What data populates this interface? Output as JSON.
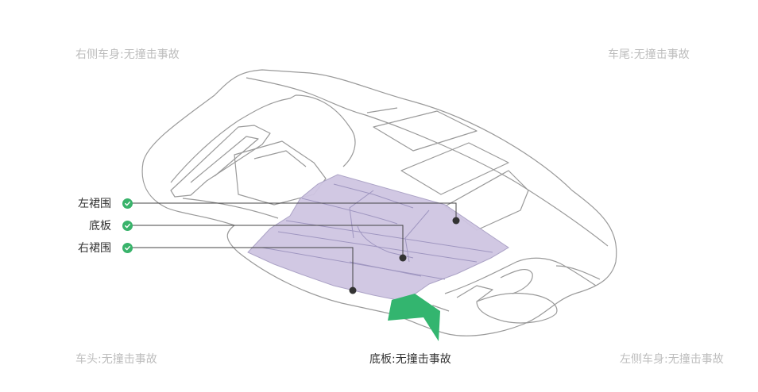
{
  "views": {
    "top_left": "右侧车身:无撞击事故",
    "top_right": "车尾:无撞击事故",
    "bottom_left": "车头:无撞击事故",
    "bottom_right": "左侧车身:无撞击事故",
    "current": "底板:无撞击事故"
  },
  "checklist": [
    {
      "label": "左裙围",
      "status": "ok"
    },
    {
      "label": "底板",
      "status": "ok"
    },
    {
      "label": "右裙围",
      "status": "ok"
    }
  ],
  "colors": {
    "check": "#39b36b",
    "highlight": "#cfc6e2",
    "arrow": "#33b56f",
    "outline": "#9a9a9a"
  }
}
